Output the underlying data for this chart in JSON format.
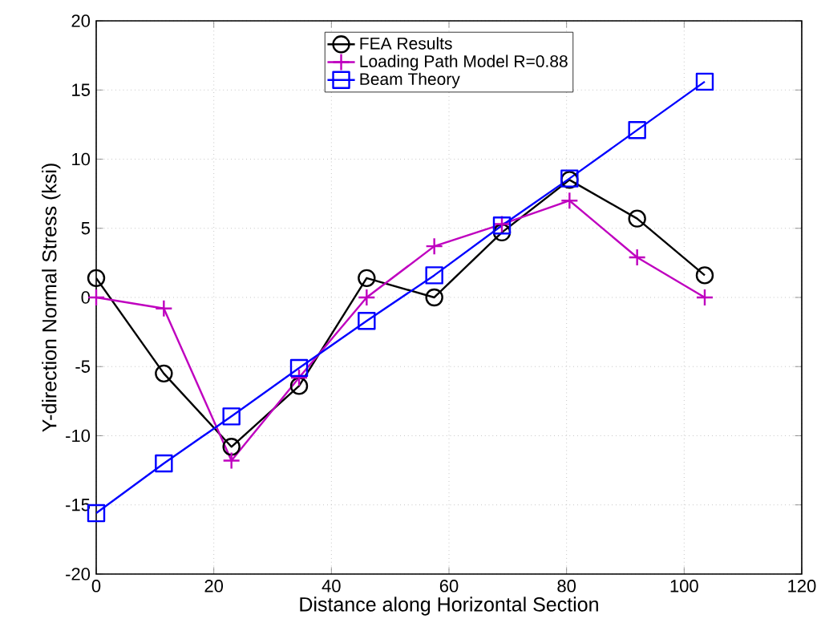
{
  "chart_data": {
    "type": "line",
    "xlabel": "Distance along Horizontal Section",
    "ylabel": "Y-direction Normal Stress (ksi)",
    "xlim": [
      0,
      120
    ],
    "ylim": [
      -20,
      20
    ],
    "xticks": [
      0,
      20,
      40,
      60,
      80,
      100,
      120
    ],
    "yticks": [
      -20,
      -15,
      -10,
      -5,
      0,
      5,
      10,
      15,
      20
    ],
    "grid": true,
    "legend": "top",
    "line_style": "solid",
    "series": [
      {
        "name": "FEA Results",
        "color": "#000000",
        "marker": "circle",
        "x": [
          0,
          11.5,
          23,
          34.5,
          46,
          57.5,
          69,
          80.5,
          92,
          103.5
        ],
        "values": [
          1.4,
          -5.5,
          -10.8,
          -6.4,
          1.4,
          0,
          4.7,
          8.5,
          5.7,
          1.6
        ]
      },
      {
        "name": "Loading Path Model R=0.88",
        "color": "#bf00bf",
        "marker": "cross",
        "x": [
          0,
          11.5,
          23,
          34.5,
          46,
          57.5,
          69,
          80.5,
          92,
          103.5
        ],
        "values": [
          0,
          -0.8,
          -11.8,
          -5.8,
          0,
          3.7,
          5.3,
          7,
          2.9,
          0
        ]
      },
      {
        "name": "Beam Theory",
        "color": "#0000ff",
        "marker": "square",
        "x": [
          0,
          11.5,
          23,
          34.5,
          46,
          57.5,
          69,
          80.5,
          92,
          103.5
        ],
        "values": [
          -15.6,
          -12,
          -8.6,
          -5.1,
          -1.7,
          1.6,
          5.2,
          8.6,
          12.1,
          15.6
        ]
      }
    ]
  }
}
